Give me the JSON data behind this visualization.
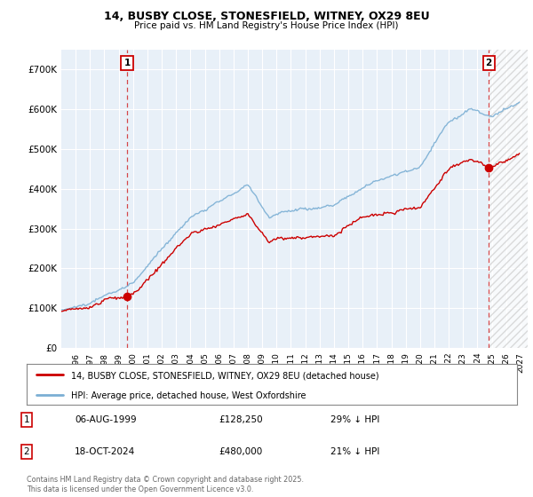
{
  "title": "14, BUSBY CLOSE, STONESFIELD, WITNEY, OX29 8EU",
  "subtitle": "Price paid vs. HM Land Registry's House Price Index (HPI)",
  "legend_line1": "14, BUSBY CLOSE, STONESFIELD, WITNEY, OX29 8EU (detached house)",
  "legend_line2": "HPI: Average price, detached house, West Oxfordshire",
  "footer": "Contains HM Land Registry data © Crown copyright and database right 2025.\nThis data is licensed under the Open Government Licence v3.0.",
  "sale1_date": "06-AUG-1999",
  "sale1_price": "£128,250",
  "sale1_hpi": "29% ↓ HPI",
  "sale1_year": 1999.58,
  "sale1_value": 128250,
  "sale2_date": "18-OCT-2024",
  "sale2_price": "£480,000",
  "sale2_hpi": "21% ↓ HPI",
  "sale2_year": 2024.78,
  "sale2_value": 480000,
  "property_color": "#cc0000",
  "hpi_color": "#7bafd4",
  "background_color": "#ffffff",
  "plot_bg_color": "#e8f0f8",
  "grid_color": "#ffffff",
  "ylim": [
    0,
    750000
  ],
  "xlim": [
    1995.0,
    2027.5
  ],
  "yticks": [
    0,
    100000,
    200000,
    300000,
    400000,
    500000,
    600000,
    700000
  ],
  "ytick_labels": [
    "£0",
    "£100K",
    "£200K",
    "£300K",
    "£400K",
    "£500K",
    "£600K",
    "£700K"
  ],
  "xticks": [
    1996,
    1997,
    1998,
    1999,
    2000,
    2001,
    2002,
    2003,
    2004,
    2005,
    2006,
    2007,
    2008,
    2009,
    2010,
    2011,
    2012,
    2013,
    2014,
    2015,
    2016,
    2017,
    2018,
    2019,
    2020,
    2021,
    2022,
    2023,
    2024,
    2025,
    2026,
    2027
  ]
}
